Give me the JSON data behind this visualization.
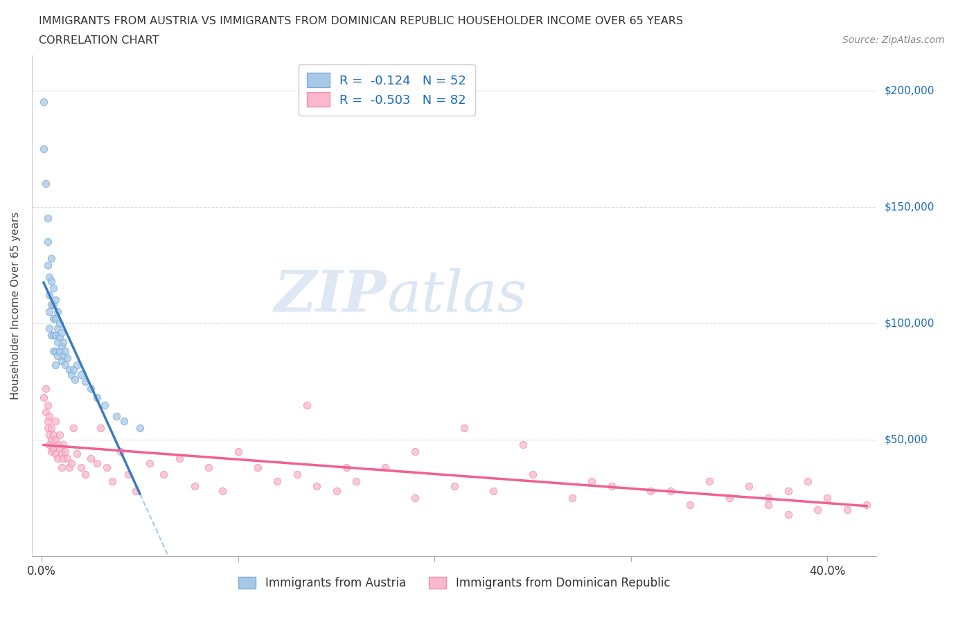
{
  "title_line1": "IMMIGRANTS FROM AUSTRIA VS IMMIGRANTS FROM DOMINICAN REPUBLIC HOUSEHOLDER INCOME OVER 65 YEARS",
  "title_line2": "CORRELATION CHART",
  "source_text": "Source: ZipAtlas.com",
  "ylabel": "Householder Income Over 65 years",
  "xticklabels_edge": [
    "0.0%",
    "40.0%"
  ],
  "xticks_edge": [
    0.0,
    0.4
  ],
  "ytick_right_labels": [
    "$200,000",
    "$150,000",
    "$100,000",
    "$50,000"
  ],
  "yticks": [
    0,
    50000,
    100000,
    150000,
    200000
  ],
  "xlim": [
    -0.005,
    0.425
  ],
  "ylim": [
    0,
    215000
  ],
  "color_austria": "#a8c8e8",
  "color_austria_edge": "#7aafd4",
  "color_austria_line": "#3a7bbf",
  "color_dr": "#f9b8cc",
  "color_dr_edge": "#f090b0",
  "color_dr_line": "#f06090",
  "color_dashed": "#8ec0e8",
  "watermark_zip": "ZIP",
  "watermark_atlas": "atlas",
  "legend_label1": "R =  -0.124   N = 52",
  "legend_label2": "R =  -0.503   N = 82",
  "bottom_label1": "Immigrants from Austria",
  "bottom_label2": "Immigrants from Dominican Republic",
  "austria_x": [
    0.001,
    0.001,
    0.002,
    0.003,
    0.003,
    0.003,
    0.004,
    0.004,
    0.004,
    0.004,
    0.005,
    0.005,
    0.005,
    0.005,
    0.006,
    0.006,
    0.006,
    0.006,
    0.006,
    0.007,
    0.007,
    0.007,
    0.007,
    0.007,
    0.008,
    0.008,
    0.008,
    0.008,
    0.009,
    0.009,
    0.009,
    0.01,
    0.01,
    0.01,
    0.011,
    0.011,
    0.012,
    0.012,
    0.013,
    0.014,
    0.015,
    0.016,
    0.017,
    0.018,
    0.02,
    0.022,
    0.025,
    0.028,
    0.032,
    0.038,
    0.042,
    0.05
  ],
  "austria_y": [
    195000,
    175000,
    160000,
    145000,
    135000,
    125000,
    120000,
    112000,
    105000,
    98000,
    128000,
    118000,
    108000,
    95000,
    115000,
    108000,
    102000,
    95000,
    88000,
    110000,
    102000,
    95000,
    88000,
    82000,
    105000,
    98000,
    92000,
    86000,
    100000,
    94000,
    88000,
    96000,
    90000,
    84000,
    92000,
    86000,
    88000,
    82000,
    85000,
    80000,
    78000,
    80000,
    76000,
    82000,
    78000,
    75000,
    72000,
    68000,
    65000,
    60000,
    58000,
    55000
  ],
  "dr_x": [
    0.001,
    0.002,
    0.002,
    0.003,
    0.003,
    0.003,
    0.004,
    0.004,
    0.004,
    0.005,
    0.005,
    0.005,
    0.006,
    0.006,
    0.007,
    0.007,
    0.007,
    0.008,
    0.008,
    0.009,
    0.009,
    0.01,
    0.01,
    0.011,
    0.011,
    0.012,
    0.013,
    0.014,
    0.015,
    0.016,
    0.018,
    0.02,
    0.022,
    0.025,
    0.028,
    0.03,
    0.033,
    0.036,
    0.04,
    0.044,
    0.048,
    0.055,
    0.062,
    0.07,
    0.078,
    0.085,
    0.092,
    0.1,
    0.11,
    0.12,
    0.13,
    0.14,
    0.15,
    0.16,
    0.175,
    0.19,
    0.21,
    0.23,
    0.25,
    0.27,
    0.29,
    0.31,
    0.33,
    0.34,
    0.35,
    0.36,
    0.37,
    0.38,
    0.39,
    0.4,
    0.41,
    0.215,
    0.245,
    0.19,
    0.155,
    0.135,
    0.32,
    0.28,
    0.38,
    0.42,
    0.395,
    0.37
  ],
  "dr_y": [
    68000,
    62000,
    72000,
    58000,
    65000,
    55000,
    60000,
    52000,
    48000,
    55000,
    50000,
    45000,
    52000,
    46000,
    50000,
    44000,
    58000,
    48000,
    42000,
    46000,
    52000,
    44000,
    38000,
    48000,
    42000,
    45000,
    42000,
    38000,
    40000,
    55000,
    44000,
    38000,
    35000,
    42000,
    40000,
    55000,
    38000,
    32000,
    45000,
    35000,
    28000,
    40000,
    35000,
    42000,
    30000,
    38000,
    28000,
    45000,
    38000,
    32000,
    35000,
    30000,
    28000,
    32000,
    38000,
    25000,
    30000,
    28000,
    35000,
    25000,
    30000,
    28000,
    22000,
    32000,
    25000,
    30000,
    22000,
    28000,
    32000,
    25000,
    20000,
    55000,
    48000,
    45000,
    38000,
    65000,
    28000,
    32000,
    18000,
    22000,
    20000,
    25000
  ]
}
